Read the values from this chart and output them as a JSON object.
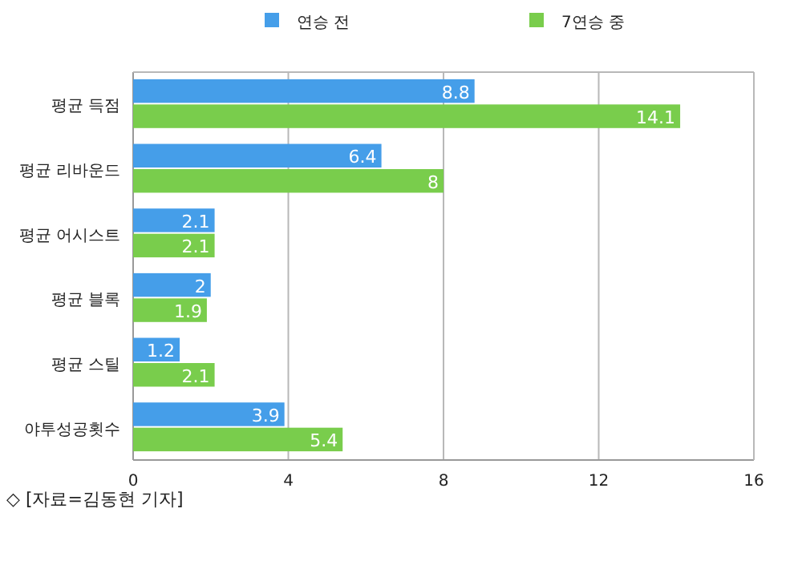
{
  "chart_data": {
    "type": "bar",
    "orientation": "horizontal",
    "categories": [
      "평균 득점",
      "평균 리바운드",
      "평균 어시스트",
      "평균 블록",
      "평균 스틸",
      "야투성공횟수"
    ],
    "series": [
      {
        "name": "연승 전",
        "color": "#459ee9",
        "values": [
          8.8,
          6.4,
          2.1,
          2,
          1.2,
          3.9
        ]
      },
      {
        "name": "7연승 중",
        "color": "#79cd4c",
        "values": [
          14.1,
          8,
          2.1,
          1.9,
          2.1,
          5.4
        ]
      }
    ],
    "xlim": [
      0,
      16
    ],
    "xticks": [
      0,
      4,
      8,
      12,
      16
    ],
    "grid": "x",
    "legend": "top",
    "data_labels": true,
    "annotations": [
      "◇ [자료=김동현 기자]"
    ]
  }
}
